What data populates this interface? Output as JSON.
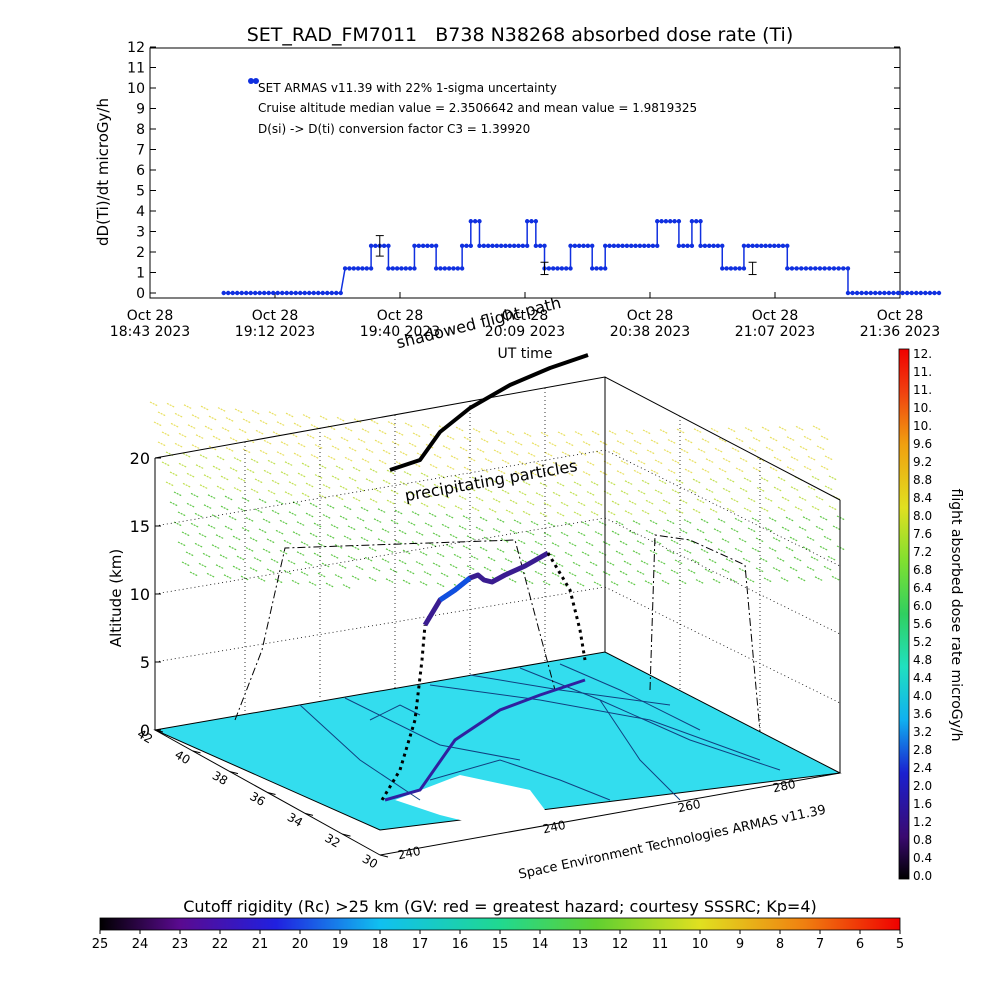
{
  "chart_data": [
    {
      "type": "scatter",
      "title": "SET_RAD_FM7011   B738 N38268 absorbed dose rate (Ti)",
      "xlabel": "UT time",
      "ylabel": "dD(Ti)/dt microGy/h",
      "ylim": [
        0,
        12
      ],
      "y_ticks": [
        "0",
        "1",
        "2",
        "3",
        "4",
        "5",
        "6",
        "7",
        "8",
        "9",
        "10",
        "11",
        "12"
      ],
      "x_ticks": [
        {
          "date": "Oct 28",
          "time": "18:43 2023"
        },
        {
          "date": "Oct 28",
          "time": "19:12 2023"
        },
        {
          "date": "Oct 28",
          "time": "19:40 2023"
        },
        {
          "date": "Oct 28",
          "time": "20:09 2023"
        },
        {
          "date": "Oct 28",
          "time": "20:38 2023"
        },
        {
          "date": "Oct 28",
          "time": "21:07 2023"
        },
        {
          "date": "Oct 28",
          "time": "21:36 2023"
        }
      ],
      "xlim": [
        "18:43",
        "21:36"
      ],
      "series_color": "#1030e0",
      "annotations": [
        "SET ARMAS v11.39 with 22% 1-sigma uncertainty",
        "Cruise altitude median value = 2.3506642 and mean value = 1.9819325",
        "D(si) -> D(ti) conversion factor C3 = 1.39920"
      ],
      "series": [
        {
          "segments": [
            {
              "from": "19:00",
              "to": "19:27",
              "value": 0
            },
            {
              "from": "19:28",
              "to": "19:34",
              "value": 1.2
            },
            {
              "from": "19:34",
              "to": "19:38",
              "value": 2.3
            },
            {
              "from": "19:38",
              "to": "19:44",
              "value": 1.2
            },
            {
              "from": "19:44",
              "to": "19:49",
              "value": 2.3
            },
            {
              "from": "19:49",
              "to": "19:55",
              "value": 1.2
            },
            {
              "from": "19:55",
              "to": "19:57",
              "value": 2.3
            },
            {
              "from": "19:57",
              "to": "19:59",
              "value": 3.5
            },
            {
              "from": "19:59",
              "to": "20:10",
              "value": 2.3
            },
            {
              "from": "20:10",
              "to": "20:12",
              "value": 3.5
            },
            {
              "from": "20:12",
              "to": "20:14",
              "value": 2.3
            },
            {
              "from": "20:14",
              "to": "20:20",
              "value": 1.2
            },
            {
              "from": "20:20",
              "to": "20:25",
              "value": 2.3
            },
            {
              "from": "20:25",
              "to": "20:28",
              "value": 1.2
            },
            {
              "from": "20:28",
              "to": "20:40",
              "value": 2.3
            },
            {
              "from": "20:40",
              "to": "20:45",
              "value": 3.5
            },
            {
              "from": "20:45",
              "to": "20:48",
              "value": 2.3
            },
            {
              "from": "20:48",
              "to": "20:50",
              "value": 3.5
            },
            {
              "from": "20:50",
              "to": "20:55",
              "value": 2.3
            },
            {
              "from": "20:55",
              "to": "21:00",
              "value": 1.2
            },
            {
              "from": "21:00",
              "to": "21:10",
              "value": 2.3
            },
            {
              "from": "21:10",
              "to": "21:24",
              "value": 1.2
            },
            {
              "from": "21:24",
              "to": "21:45",
              "value": 0
            }
          ],
          "error_bars": [
            {
              "time": "19:36",
              "value": 2.3,
              "low": 1.8,
              "high": 2.8
            },
            {
              "time": "20:14",
              "value": 1.2,
              "low": 0.9,
              "high": 1.5
            },
            {
              "time": "21:02",
              "value": 1.2,
              "low": 0.9,
              "high": 1.5
            }
          ]
        }
      ]
    },
    {
      "type": "scatter",
      "kind": "3d-flight-track",
      "zlabel": "Altitude (km)",
      "z_ticks": [
        "0",
        "5",
        "10",
        "15",
        "20"
      ],
      "zlim": [
        0,
        20
      ],
      "lat_ticks": [
        "42",
        "40",
        "38",
        "36",
        "34",
        "32",
        "30"
      ],
      "lon_ticks": [
        "240",
        "240",
        "260",
        "280"
      ],
      "labels": {
        "shadowed_path": "shadowed flight path",
        "precipitating": "precipitating particles",
        "credit": "Space Environment Technologies ARMAS v11.39"
      },
      "ground_color": "#33ddee",
      "precip_colors": [
        "#e8e060",
        "#c0e050",
        "#60c848"
      ],
      "shadow_path_color": "#000000"
    }
  ],
  "colorbar_right": {
    "label": "flight absorbed dose rate microGy/h",
    "ticks": [
      "12.",
      "11.",
      "11.",
      "10.",
      "10.",
      "9.6",
      "9.2",
      "8.8",
      "8.4",
      "8.0",
      "7.6",
      "7.2",
      "6.8",
      "6.4",
      "6.0",
      "5.6",
      "5.2",
      "4.8",
      "4.4",
      "4.0",
      "3.6",
      "3.2",
      "2.8",
      "2.4",
      "2.0",
      "1.6",
      "1.2",
      "0.8",
      "0.4",
      "0.0"
    ]
  },
  "colorbar_bottom": {
    "label": "Cutoff rigidity (Rc) >25 km (GV: red = greatest hazard; courtesy SSSRC; Kp=4)",
    "ticks": [
      "25",
      "24",
      "23",
      "22",
      "21",
      "20",
      "19",
      "18",
      "17",
      "16",
      "15",
      "14",
      "13",
      "12",
      "11",
      "10",
      "9",
      "8",
      "7",
      "6",
      "5"
    ]
  }
}
